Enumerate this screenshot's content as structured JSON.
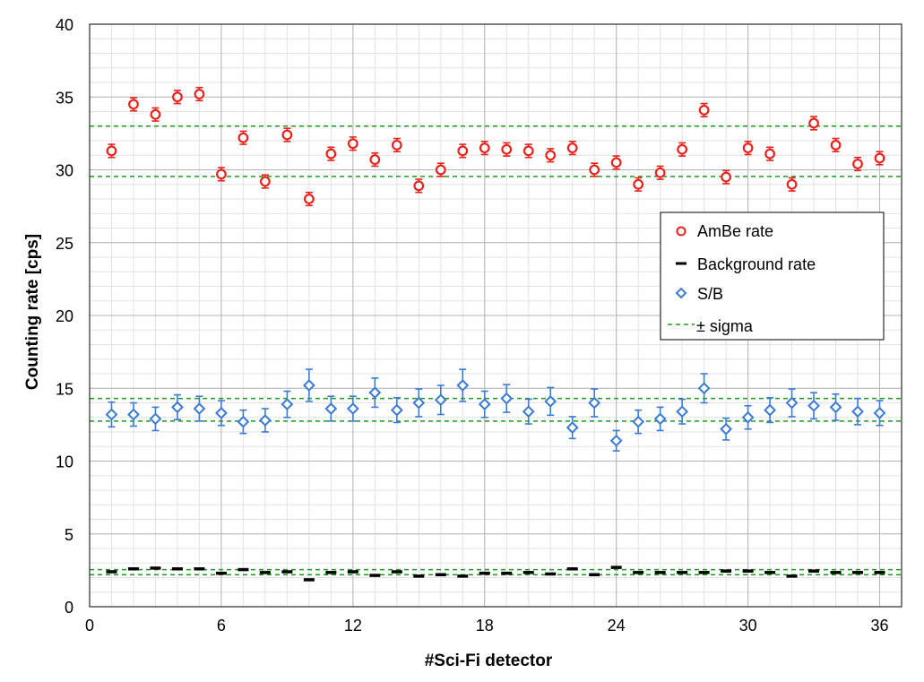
{
  "chart_data": {
    "type": "scatter",
    "title": "",
    "xlabel": "#Sci-Fi detector",
    "ylabel": "Counting rate [cps]",
    "xlim": [
      0,
      37
    ],
    "ylim": [
      0,
      40
    ],
    "x_ticks": [
      0,
      6,
      12,
      18,
      24,
      30,
      36
    ],
    "y_ticks": [
      0,
      5,
      10,
      15,
      20,
      25,
      30,
      35,
      40
    ],
    "x_minor_step": 1,
    "y_minor_step": 1,
    "grid": true,
    "legend_position": "right",
    "x": [
      1,
      2,
      3,
      4,
      5,
      6,
      7,
      8,
      9,
      10,
      11,
      12,
      13,
      14,
      15,
      16,
      17,
      18,
      19,
      20,
      21,
      22,
      23,
      24,
      25,
      26,
      27,
      28,
      29,
      30,
      31,
      32,
      33,
      34,
      35,
      36
    ],
    "series": [
      {
        "name": "AmBe rate",
        "marker": "circle",
        "color": "#e8211b",
        "values": [
          31.3,
          34.5,
          33.8,
          35.0,
          35.2,
          29.7,
          32.2,
          29.2,
          32.4,
          28.0,
          31.1,
          31.8,
          30.7,
          31.7,
          28.9,
          30.0,
          31.3,
          31.5,
          31.4,
          31.3,
          31.0,
          31.5,
          30.0,
          30.5,
          29.0,
          29.8,
          31.4,
          34.1,
          29.5,
          31.5,
          31.1,
          29.0,
          33.2,
          31.7,
          30.4,
          30.8
        ],
        "errors": [
          0.45,
          0.45,
          0.45,
          0.45,
          0.45,
          0.45,
          0.45,
          0.45,
          0.45,
          0.45,
          0.45,
          0.45,
          0.45,
          0.45,
          0.45,
          0.45,
          0.45,
          0.45,
          0.45,
          0.45,
          0.45,
          0.45,
          0.45,
          0.45,
          0.45,
          0.45,
          0.45,
          0.45,
          0.45,
          0.45,
          0.45,
          0.45,
          0.45,
          0.45,
          0.45,
          0.45
        ]
      },
      {
        "name": "Background rate",
        "marker": "dash",
        "color": "#000000",
        "values": [
          2.4,
          2.6,
          2.65,
          2.6,
          2.6,
          2.3,
          2.55,
          2.35,
          2.4,
          1.85,
          2.35,
          2.4,
          2.15,
          2.4,
          2.1,
          2.2,
          2.1,
          2.3,
          2.3,
          2.35,
          2.25,
          2.6,
          2.2,
          2.7,
          2.35,
          2.35,
          2.35,
          2.35,
          2.45,
          2.45,
          2.35,
          2.1,
          2.45,
          2.35,
          2.35,
          2.35
        ],
        "errors": [
          0.08,
          0.08,
          0.08,
          0.08,
          0.08,
          0.08,
          0.08,
          0.08,
          0.08,
          0.08,
          0.08,
          0.08,
          0.08,
          0.08,
          0.08,
          0.08,
          0.08,
          0.08,
          0.08,
          0.08,
          0.08,
          0.08,
          0.08,
          0.08,
          0.08,
          0.08,
          0.08,
          0.08,
          0.08,
          0.08,
          0.08,
          0.08,
          0.08,
          0.08,
          0.08,
          0.08
        ]
      },
      {
        "name": "S/B",
        "marker": "diamond",
        "color": "#3b7bd4",
        "values": [
          13.2,
          13.2,
          12.9,
          13.7,
          13.6,
          13.3,
          12.7,
          12.8,
          13.9,
          15.2,
          13.6,
          13.6,
          14.7,
          13.5,
          14.0,
          14.2,
          15.2,
          13.9,
          14.3,
          13.4,
          14.1,
          12.3,
          14.0,
          11.4,
          12.7,
          12.9,
          13.4,
          15.0,
          12.2,
          13.0,
          13.5,
          14.0,
          13.8,
          13.7,
          13.4,
          13.3
        ],
        "errors": [
          0.85,
          0.8,
          0.8,
          0.85,
          0.85,
          0.85,
          0.8,
          0.8,
          0.9,
          1.1,
          0.85,
          0.85,
          1.0,
          0.85,
          0.95,
          1.0,
          1.1,
          0.9,
          0.95,
          0.85,
          0.95,
          0.75,
          0.95,
          0.7,
          0.8,
          0.8,
          0.85,
          1.0,
          0.75,
          0.8,
          0.85,
          0.95,
          0.9,
          0.9,
          0.9,
          0.85
        ]
      }
    ],
    "reference_lines": {
      "name": "± sigma",
      "color": "#1f9a1f",
      "y_values": [
        33.0,
        29.55,
        14.3,
        12.75,
        2.55,
        2.2
      ]
    }
  }
}
